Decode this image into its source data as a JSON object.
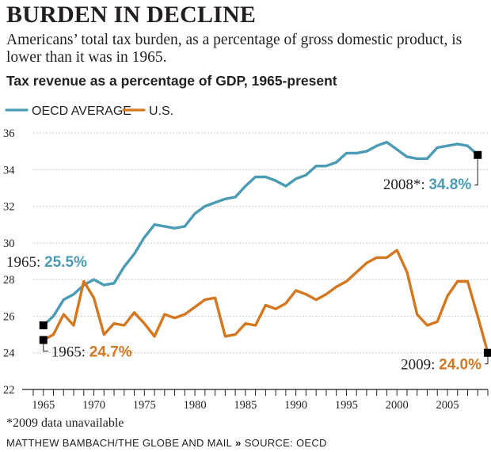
{
  "headline": "BURDEN IN DECLINE",
  "dek": "Americans’ total tax burden, as a percentage of gross domestic product, is lower than it was in 1965.",
  "footnote": "*2009 data unavailable",
  "credit": {
    "author": "MATTHEW BAMBACH/THE GLOBE AND MAIL",
    "separator": "»",
    "source": "SOURCE: OECD"
  },
  "colors": {
    "oecd": "#4b9bb5",
    "us": "#d5771f",
    "text": "#231f20",
    "grid": "#b3b3b3",
    "marker": "#000000"
  },
  "chart_data": {
    "type": "line",
    "title": "Tax revenue as a percentage of GDP, 1965-present",
    "xlabel": "",
    "ylabel": "",
    "xlim": [
      1964,
      2009
    ],
    "ylim": [
      22,
      36
    ],
    "yticks": [
      22,
      24,
      26,
      28,
      30,
      32,
      34,
      36
    ],
    "xticks": [
      1965,
      1970,
      1975,
      1980,
      1985,
      1990,
      1995,
      2000,
      2005
    ],
    "grid": "horizontal dotted",
    "legend": "top-left",
    "series": [
      {
        "name": "OECD AVERAGE",
        "color": "#4b9bb5",
        "x": [
          1965,
          1966,
          1967,
          1968,
          1969,
          1970,
          1971,
          1972,
          1973,
          1974,
          1975,
          1976,
          1977,
          1978,
          1979,
          1980,
          1981,
          1982,
          1983,
          1984,
          1985,
          1986,
          1987,
          1988,
          1989,
          1990,
          1991,
          1992,
          1993,
          1994,
          1995,
          1996,
          1997,
          1998,
          1999,
          2000,
          2001,
          2002,
          2003,
          2004,
          2005,
          2006,
          2007,
          2008
        ],
        "y": [
          25.5,
          26.0,
          26.9,
          27.2,
          27.7,
          28.0,
          27.7,
          27.8,
          28.7,
          29.4,
          30.3,
          31.0,
          30.9,
          30.8,
          30.9,
          31.6,
          32.0,
          32.2,
          32.4,
          32.5,
          33.1,
          33.6,
          33.6,
          33.4,
          33.1,
          33.5,
          33.7,
          34.2,
          34.2,
          34.4,
          34.9,
          34.9,
          35.0,
          35.3,
          35.5,
          35.1,
          34.7,
          34.6,
          34.6,
          35.2,
          35.3,
          35.4,
          35.3,
          34.8
        ]
      },
      {
        "name": "U.S.",
        "color": "#d5771f",
        "x": [
          1965,
          1966,
          1967,
          1968,
          1969,
          1970,
          1971,
          1972,
          1973,
          1974,
          1975,
          1976,
          1977,
          1978,
          1979,
          1980,
          1981,
          1982,
          1983,
          1984,
          1985,
          1986,
          1987,
          1988,
          1989,
          1990,
          1991,
          1992,
          1993,
          1994,
          1995,
          1996,
          1997,
          1998,
          1999,
          2000,
          2001,
          2002,
          2003,
          2004,
          2005,
          2006,
          2007,
          2008,
          2009
        ],
        "y": [
          24.7,
          25.0,
          26.1,
          25.5,
          27.9,
          27.0,
          25.0,
          25.6,
          25.5,
          26.2,
          25.6,
          24.9,
          26.1,
          25.9,
          26.1,
          26.5,
          26.9,
          27.0,
          24.9,
          25.0,
          25.6,
          25.5,
          26.6,
          26.4,
          26.7,
          27.4,
          27.2,
          26.9,
          27.2,
          27.6,
          27.9,
          28.4,
          28.9,
          29.2,
          29.2,
          29.6,
          28.4,
          26.1,
          25.5,
          25.7,
          27.1,
          27.9,
          27.9,
          26.0,
          24.0
        ]
      }
    ],
    "annotations": [
      {
        "prefix": "1965: ",
        "value": "25.5%",
        "series": "OECD AVERAGE",
        "x": 1965,
        "y": 25.5
      },
      {
        "prefix": "1965: ",
        "value": "24.7%",
        "series": "U.S.",
        "x": 1965,
        "y": 24.7
      },
      {
        "prefix": "2008*: ",
        "value": "34.8%",
        "series": "OECD AVERAGE",
        "x": 2008,
        "y": 34.8
      },
      {
        "prefix": "2009: ",
        "value": "24.0%",
        "series": "U.S.",
        "x": 2009,
        "y": 24.0
      }
    ]
  }
}
